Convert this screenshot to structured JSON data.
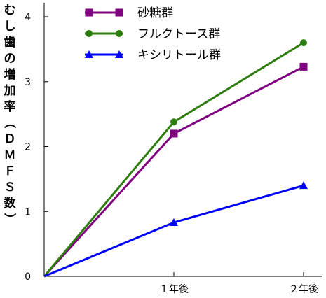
{
  "chart_data": {
    "type": "line",
    "title": "",
    "xlabel": "",
    "ylabel": "むし歯の増加率（ＤＭＦＳ数）",
    "categories": [
      "",
      "１年後",
      "２年後"
    ],
    "ylim": [
      0,
      4
    ],
    "yticks": [
      "0",
      "1",
      "2",
      "3",
      "4"
    ],
    "grid": false,
    "legend_position": "top-center",
    "series": [
      {
        "name": "砂糖群",
        "values": [
          0,
          2.2,
          3.23
        ],
        "color": "#800080",
        "marker": "square"
      },
      {
        "name": "フルクトース群",
        "values": [
          0,
          2.38,
          3.6
        ],
        "color": "#2e7d0f",
        "marker": "circle"
      },
      {
        "name": "キシリトール群",
        "values": [
          0,
          0.83,
          1.4
        ],
        "color": "#0000ff",
        "marker": "triangle"
      }
    ]
  }
}
